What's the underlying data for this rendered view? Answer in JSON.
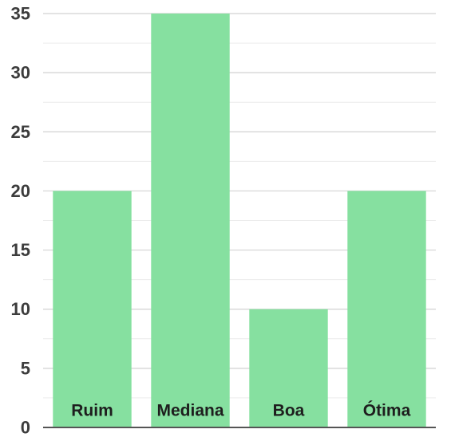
{
  "chart_data": {
    "type": "bar",
    "categories": [
      "Ruim",
      "Mediana",
      "Boa",
      "Ótima"
    ],
    "values": [
      20,
      35,
      10,
      20
    ],
    "title": "",
    "xlabel": "",
    "ylabel": "",
    "ylim": [
      0,
      35
    ],
    "y_ticks": [
      0,
      5,
      10,
      15,
      20,
      25,
      30,
      35
    ],
    "grid": true,
    "minor_grid": true,
    "legend": "none",
    "colors": {
      "bar": "#86e0a0",
      "grid_major": "#d2d2d2",
      "grid_minor": "#ececec",
      "axis": "#555555"
    }
  }
}
